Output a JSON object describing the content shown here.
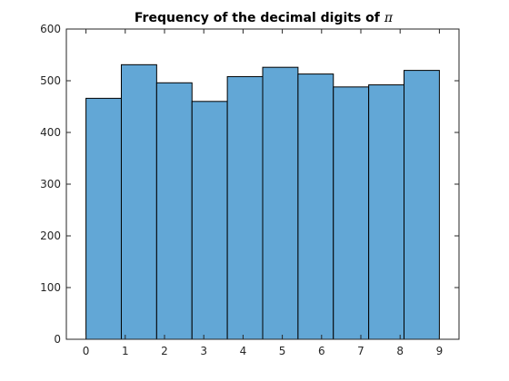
{
  "chart_data": {
    "type": "bar",
    "title": "Frequency of the decimal digits of",
    "title_symbol": "π",
    "xlabel": "",
    "ylabel": "",
    "x_ticks": [
      "0",
      "1",
      "2",
      "3",
      "4",
      "5",
      "6",
      "7",
      "8",
      "9"
    ],
    "y_ticks": [
      "0",
      "100",
      "200",
      "300",
      "400",
      "500",
      "600"
    ],
    "xlim": [
      -0.5,
      9.5
    ],
    "ylim": [
      0,
      600
    ],
    "bin_edges": [
      0,
      0.9,
      1.8,
      2.7,
      3.6,
      4.5,
      5.4,
      6.3,
      7.2,
      8.1,
      9.0
    ],
    "values": [
      466,
      531,
      496,
      460,
      508,
      526,
      513,
      488,
      492,
      520
    ],
    "grid": false,
    "bar_color": "#62a7d6",
    "edge_color": "#000000"
  }
}
